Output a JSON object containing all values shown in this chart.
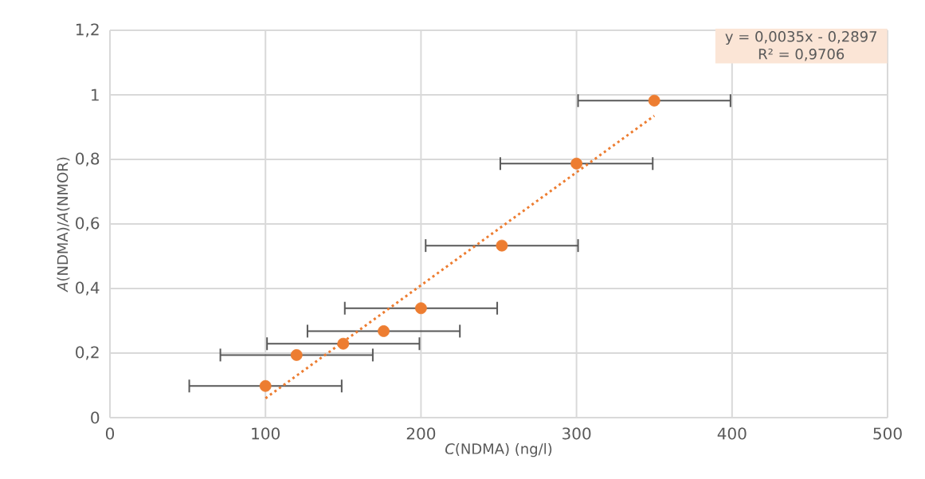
{
  "chart_data": {
    "type": "scatter",
    "xlabel": "*C*(NDMA) (ng/l)",
    "ylabel": "*A*(NDMA)/*A*(NMOR)",
    "series": [
      {
        "color": "#ed7d31",
        "marker": "circle",
        "x": [
          100,
          120,
          150,
          176,
          200,
          252,
          300,
          350
        ],
        "values": [
          0.098,
          0.194,
          0.229,
          0.268,
          0.339,
          0.533,
          0.787,
          0.982
        ],
        "xerrors": [
          49,
          49,
          49,
          49,
          49,
          49,
          49,
          49
        ]
      },
      {
        "type": "line",
        "color": "#ed7d31",
        "line_style": "dotted",
        "marker": "none",
        "x": [
          100,
          350
        ],
        "values": [
          0.06,
          0.935
        ]
      }
    ],
    "annotations": [
      "y = 0,0035x - 0,2897",
      "R² = 0,9706"
    ],
    "xlim": [
      0,
      500
    ],
    "ylim": [
      0,
      1.2
    ],
    "xticks": [
      0,
      100,
      200,
      300,
      400,
      500
    ],
    "yticks": [
      0,
      {
        "value": 0.2,
        "label": "0,2"
      },
      {
        "value": 0.4,
        "label": "0,4"
      },
      {
        "value": 0.6,
        "label": "0,6"
      },
      {
        "value": 0.8,
        "label": "0,8"
      },
      1,
      {
        "value": 1.2,
        "label": "1,2"
      }
    ],
    "grid": true
  }
}
